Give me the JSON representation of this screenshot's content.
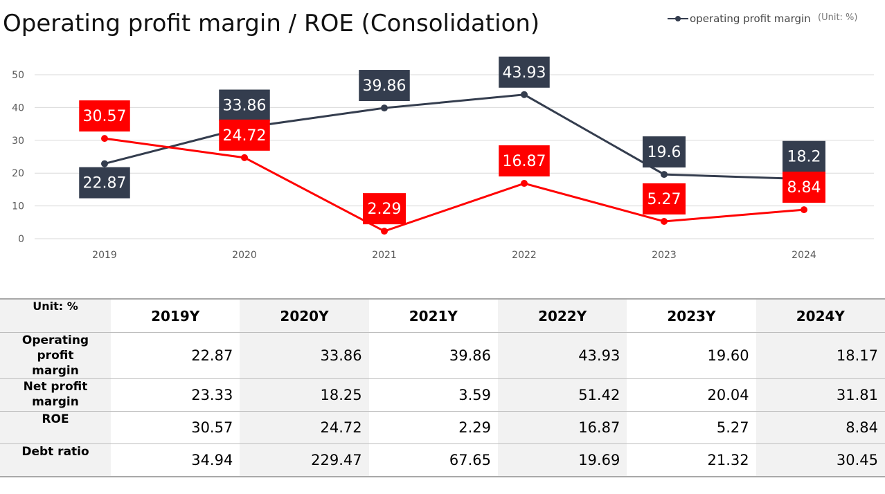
{
  "title": "Operating profit margin / ROE (Consolidation)",
  "legend": {
    "label": "operating profit margin",
    "color": "#343d4e"
  },
  "unit": "(Unit: %)",
  "colors": {
    "opm": "#343d4e",
    "roe": "#ff0000",
    "grid": "#d9d9d9",
    "axis_text": "#595959"
  },
  "chart_data": {
    "type": "line",
    "categories": [
      "2019",
      "2020",
      "2021",
      "2022",
      "2023",
      "2024"
    ],
    "ylim": [
      0,
      50
    ],
    "yticks": [
      "0",
      "10",
      "20",
      "30",
      "40",
      "50"
    ],
    "grid": true,
    "legend_position": "top-right",
    "series": [
      {
        "key": "opm",
        "name": "operating profit margin",
        "values": [
          22.87,
          33.86,
          39.86,
          43.93,
          19.6,
          18.2
        ],
        "labels": [
          "22.87",
          "33.86",
          "39.86",
          "43.93",
          "19.6",
          "18.2"
        ],
        "label_side": [
          "below",
          "above",
          "above",
          "above",
          "above",
          "above"
        ]
      },
      {
        "key": "roe",
        "values": [
          30.57,
          24.72,
          2.29,
          16.87,
          5.27,
          8.84
        ],
        "labels": [
          "30.57",
          "24.72",
          "2.29",
          "16.87",
          "5.27",
          "8.84"
        ],
        "label_side": [
          "above",
          "above",
          "above",
          "above",
          "above",
          "above"
        ]
      }
    ]
  },
  "table": {
    "unit_label": "Unit: %",
    "headers": [
      "2019Y",
      "2020Y",
      "2021Y",
      "2022Y",
      "2023Y",
      "2024Y"
    ],
    "rows": [
      {
        "label_lines": [
          "Operating profit",
          "margin"
        ],
        "values": [
          "22.87",
          "33.86",
          "39.86",
          "43.93",
          "19.60",
          "18.17"
        ]
      },
      {
        "label_lines": [
          "Net profit margin"
        ],
        "values": [
          "23.33",
          "18.25",
          "3.59",
          "51.42",
          "20.04",
          "31.81"
        ]
      },
      {
        "label_lines": [
          "ROE"
        ],
        "values": [
          "30.57",
          "24.72",
          "2.29",
          "16.87",
          "5.27",
          "8.84"
        ]
      },
      {
        "label_lines": [
          "Debt ratio"
        ],
        "values": [
          "34.94",
          "229.47",
          "67.65",
          "19.69",
          "21.32",
          "30.45"
        ]
      }
    ]
  }
}
